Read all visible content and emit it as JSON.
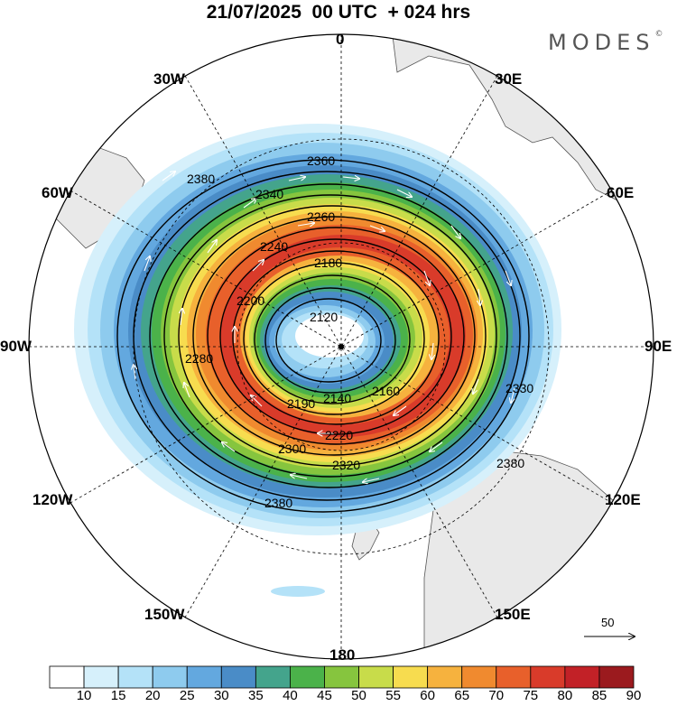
{
  "title": "21/07/2025  00 UTC  + 024 hrs",
  "brand": "MODES",
  "brand_mark": "©",
  "longitude_labels": {
    "l0": "0",
    "l30e": "30E",
    "l60e": "60E",
    "l90e": "90E",
    "l120e": "120E",
    "l150e": "150E",
    "l180": "180",
    "l150w": "150W",
    "l120w": "120W",
    "l90w": "90W",
    "l60w": "60W",
    "l30w": "30W"
  },
  "contour_labels": [
    "2120",
    "2140",
    "2160",
    "2180",
    "2190",
    "2200",
    "2220",
    "2240",
    "2260",
    "2280",
    "2300",
    "2320",
    "2330",
    "2340",
    "2360",
    "2380"
  ],
  "colorbar": {
    "ticks": [
      "10",
      "15",
      "20",
      "25",
      "30",
      "35",
      "40",
      "45",
      "50",
      "55",
      "60",
      "65",
      "70",
      "75",
      "80",
      "85",
      "90"
    ],
    "colors": [
      "#ffffff",
      "#d6f0fb",
      "#b4e2f8",
      "#8ecbee",
      "#63a8df",
      "#4a8cc7",
      "#44a48c",
      "#4bb24a",
      "#86c53e",
      "#c8dc4a",
      "#f7dc4f",
      "#f6b23e",
      "#f08a2f",
      "#e8602b",
      "#d93b2a",
      "#c22127",
      "#9b1a1e"
    ]
  },
  "scale_vector": {
    "label": "50"
  },
  "chart_data": {
    "type": "polar-stereographic-map",
    "title": "21/07/2025  00 UTC  + 024 hrs",
    "projection": "South-polar stereographic",
    "variable_shaded": "wind speed (filled, 10-90 in steps of 5)",
    "variable_contoured": "geopotential height (contours)",
    "contours": [
      2120,
      2140,
      2160,
      2180,
      2190,
      2200,
      2220,
      2240,
      2260,
      2280,
      2300,
      2320,
      2330,
      2340,
      2360,
      2380
    ],
    "colorbar_ticks": [
      10,
      15,
      20,
      25,
      30,
      35,
      40,
      45,
      50,
      55,
      60,
      65,
      70,
      75,
      80,
      85,
      90
    ],
    "scale_vector_value": 50,
    "longitudes": [
      "0",
      "30E",
      "60E",
      "90E",
      "120E",
      "150E",
      "180",
      "150W",
      "120W",
      "90W",
      "60W",
      "30W"
    ]
  }
}
